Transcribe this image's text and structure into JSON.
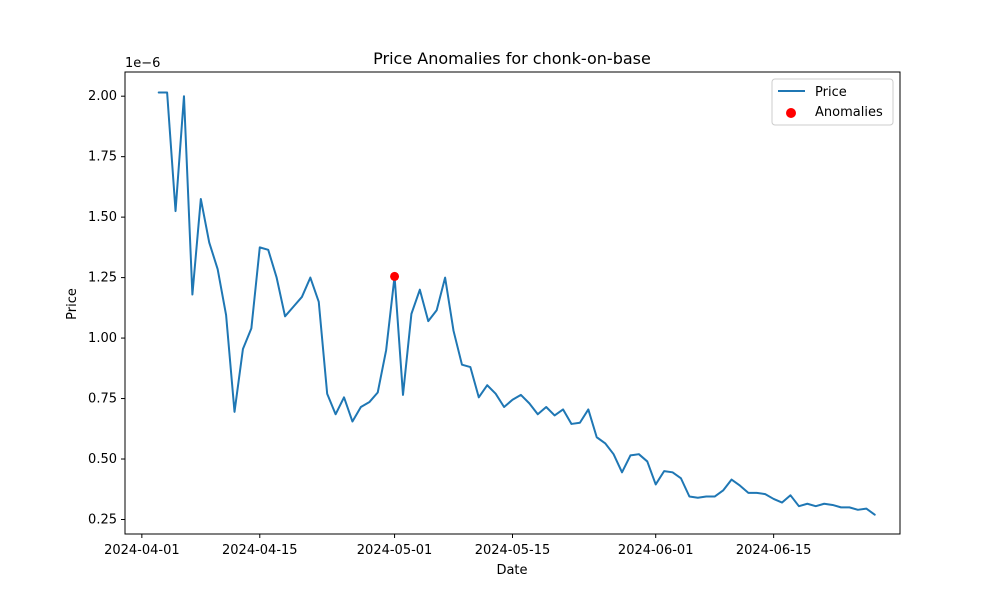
{
  "chart_data": {
    "type": "line",
    "title": "Price Anomalies for chonk-on-base",
    "xlabel": "Date",
    "ylabel": "Price",
    "y_offset_text": "1e−6",
    "y_multiplier": 1e-06,
    "xlim": [
      "2024-03-30",
      "2024-06-30"
    ],
    "ylim": [
      0.19,
      2.1
    ],
    "grid": false,
    "legend_position": "top-right",
    "x_ticks": [
      "2024-04-01",
      "2024-04-15",
      "2024-05-01",
      "2024-05-15",
      "2024-06-01",
      "2024-06-15"
    ],
    "y_ticks": [
      "0.25",
      "0.50",
      "0.75",
      "1.00",
      "1.25",
      "1.50",
      "1.75",
      "2.00"
    ],
    "colors": {
      "price": "#1f77b4",
      "anomalies": "#ff0000"
    },
    "series": [
      {
        "name": "Price",
        "kind": "line",
        "x": [
          "2024-04-03",
          "2024-04-04",
          "2024-04-05",
          "2024-04-06",
          "2024-04-07",
          "2024-04-08",
          "2024-04-09",
          "2024-04-10",
          "2024-04-11",
          "2024-04-12",
          "2024-04-13",
          "2024-04-14",
          "2024-04-15",
          "2024-04-16",
          "2024-04-17",
          "2024-04-18",
          "2024-04-19",
          "2024-04-20",
          "2024-04-21",
          "2024-04-22",
          "2024-04-23",
          "2024-04-24",
          "2024-04-25",
          "2024-04-26",
          "2024-04-27",
          "2024-04-28",
          "2024-04-29",
          "2024-04-30",
          "2024-05-01",
          "2024-05-02",
          "2024-05-03",
          "2024-05-04",
          "2024-05-05",
          "2024-05-06",
          "2024-05-07",
          "2024-05-08",
          "2024-05-09",
          "2024-05-10",
          "2024-05-11",
          "2024-05-12",
          "2024-05-13",
          "2024-05-14",
          "2024-05-15",
          "2024-05-16",
          "2024-05-17",
          "2024-05-18",
          "2024-05-19",
          "2024-05-20",
          "2024-05-21",
          "2024-05-22",
          "2024-05-23",
          "2024-05-24",
          "2024-05-25",
          "2024-05-26",
          "2024-05-27",
          "2024-05-28",
          "2024-05-29",
          "2024-05-30",
          "2024-05-31",
          "2024-06-01",
          "2024-06-02",
          "2024-06-03",
          "2024-06-04",
          "2024-06-05",
          "2024-06-06",
          "2024-06-07",
          "2024-06-08",
          "2024-06-09",
          "2024-06-10",
          "2024-06-11",
          "2024-06-12",
          "2024-06-13",
          "2024-06-14",
          "2024-06-15",
          "2024-06-16",
          "2024-06-17",
          "2024-06-18",
          "2024-06-19",
          "2024-06-20",
          "2024-06-21",
          "2024-06-22",
          "2024-06-23",
          "2024-06-24",
          "2024-06-25",
          "2024-06-26",
          "2024-06-27"
        ],
        "values": [
          2.015,
          2.015,
          1.525,
          2.0,
          1.18,
          1.575,
          1.395,
          1.285,
          1.095,
          0.695,
          0.955,
          1.04,
          1.375,
          1.365,
          1.25,
          1.09,
          1.13,
          1.17,
          1.25,
          1.15,
          0.77,
          0.685,
          0.755,
          0.655,
          0.715,
          0.735,
          0.775,
          0.95,
          1.255,
          0.765,
          1.1,
          1.2,
          1.07,
          1.115,
          1.25,
          1.03,
          0.89,
          0.88,
          0.755,
          0.805,
          0.77,
          0.715,
          0.745,
          0.765,
          0.73,
          0.685,
          0.715,
          0.68,
          0.705,
          0.645,
          0.65,
          0.705,
          0.59,
          0.565,
          0.52,
          0.445,
          0.515,
          0.52,
          0.49,
          0.395,
          0.45,
          0.445,
          0.42,
          0.345,
          0.34,
          0.345,
          0.345,
          0.37,
          0.415,
          0.39,
          0.36,
          0.36,
          0.355,
          0.335,
          0.32,
          0.35,
          0.305,
          0.315,
          0.305,
          0.315,
          0.31,
          0.3,
          0.3,
          0.29,
          0.295,
          0.27
        ]
      },
      {
        "name": "Anomalies",
        "kind": "scatter",
        "x": [
          "2024-05-01"
        ],
        "values": [
          1.255
        ]
      }
    ]
  }
}
